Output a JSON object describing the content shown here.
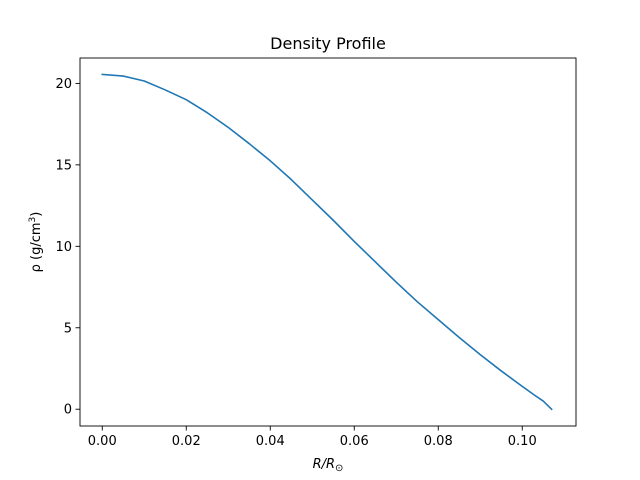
{
  "chart_data": {
    "type": "line",
    "title": "Density Profile",
    "xlabel": {
      "base": "R/R",
      "sub": "⊙"
    },
    "ylabel": {
      "pre": "ρ (g/cm",
      "sup": "3",
      "post": ")"
    },
    "xlim": [
      -0.0053,
      0.1128
    ],
    "ylim": [
      -1.03,
      21.56
    ],
    "xticks": [
      0.0,
      0.02,
      0.04,
      0.06,
      0.08,
      0.1
    ],
    "xtick_labels": [
      "0.00",
      "0.02",
      "0.04",
      "0.06",
      "0.08",
      "0.10"
    ],
    "yticks": [
      0,
      5,
      10,
      15,
      20
    ],
    "ytick_labels": [
      "0",
      "5",
      "10",
      "15",
      "20"
    ],
    "grid": false,
    "legend": "none",
    "series": [
      {
        "color": "#1f77b4",
        "x": [
          0.0,
          0.005,
          0.01,
          0.015,
          0.02,
          0.025,
          0.03,
          0.035,
          0.04,
          0.045,
          0.05,
          0.055,
          0.06,
          0.065,
          0.07,
          0.075,
          0.08,
          0.085,
          0.09,
          0.095,
          0.1,
          0.103,
          0.105,
          0.107
        ],
        "y": [
          20.55,
          20.45,
          20.15,
          19.6,
          19.0,
          18.2,
          17.3,
          16.3,
          15.25,
          14.1,
          12.85,
          11.6,
          10.3,
          9.05,
          7.8,
          6.6,
          5.5,
          4.4,
          3.35,
          2.35,
          1.4,
          0.85,
          0.5,
          0.0
        ]
      }
    ]
  }
}
